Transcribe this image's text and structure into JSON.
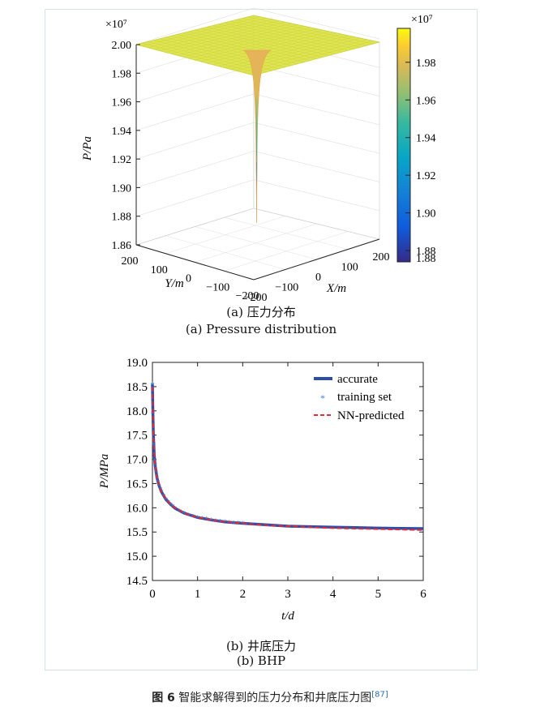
{
  "panel_a": {
    "caption_cn": "(a) 压力分布",
    "caption_en": "(a) Pressure distribution"
  },
  "panel_b": {
    "caption_cn": "(b) 井底压力",
    "caption_en": "(b) BHP"
  },
  "figure": {
    "label": "图 6",
    "title": "智能求解得到的压力分布和井底压力图",
    "ref": "[87]"
  },
  "colors": {
    "accurate": "#2b4fa8",
    "training": "#3f7fd0",
    "predicted": "#e0293a",
    "surface_top": "#d8e03c",
    "frame": "#d4e4ec"
  },
  "chart_data": [
    {
      "type": "surface",
      "zlabel": "P/Pa",
      "xlabel": "X/m",
      "ylabel": "Y/m",
      "z_exponent": "×10⁷",
      "colorbar_exponent": "×10⁷",
      "z_ticks": [
        "1.86",
        "1.88",
        "1.90",
        "1.92",
        "1.94",
        "1.96",
        "1.98",
        "2.00"
      ],
      "zlim": [
        1.86,
        2.0
      ],
      "x_ticks": [
        "−200",
        "−100",
        "0",
        "100",
        "200"
      ],
      "y_ticks": [
        "200",
        "100",
        "0",
        "−100",
        "−200"
      ],
      "xlim": [
        -200,
        200
      ],
      "ylim": [
        -200,
        200
      ],
      "colorbar_ticks": [
        "1.88",
        "1.90",
        "1.92",
        "1.94",
        "1.96",
        "1.98"
      ],
      "colorbar_range": [
        1.874,
        1.998
      ],
      "colormap": "parula",
      "surface_max": 2.0,
      "well_min": 1.875,
      "grid": true
    },
    {
      "type": "line",
      "xlabel": "t/d",
      "ylabel": "P/MPa",
      "xlim": [
        0,
        6
      ],
      "ylim": [
        14.5,
        19.0
      ],
      "x_ticks": [
        "0",
        "1",
        "2",
        "3",
        "4",
        "5",
        "6"
      ],
      "y_ticks": [
        "14.5",
        "15.0",
        "15.5",
        "16.0",
        "16.5",
        "17.0",
        "17.5",
        "18.0",
        "18.5",
        "19.0"
      ],
      "legend_position": "top-right",
      "grid": false,
      "series": [
        {
          "name": "accurate",
          "style": "solid",
          "x": [
            0,
            0.01,
            0.02,
            0.04,
            0.06,
            0.1,
            0.15,
            0.2,
            0.3,
            0.4,
            0.5,
            0.7,
            1.0,
            1.3,
            1.6,
            2.0,
            2.5,
            3.0,
            3.5,
            4.0,
            4.5,
            5.0,
            5.5,
            6.0
          ],
          "y": [
            18.55,
            17.95,
            17.55,
            17.1,
            16.88,
            16.62,
            16.45,
            16.33,
            16.17,
            16.07,
            15.99,
            15.89,
            15.8,
            15.75,
            15.71,
            15.68,
            15.65,
            15.62,
            15.61,
            15.6,
            15.59,
            15.58,
            15.575,
            15.57
          ]
        },
        {
          "name": "training set",
          "style": "markers",
          "x": [
            0,
            0.01,
            0.02,
            0.03,
            0.04,
            0.05,
            0.06,
            0.08,
            0.1,
            0.12,
            0.15,
            0.18,
            0.2,
            0.25,
            0.3,
            0.35,
            0.4,
            0.45,
            0.5,
            0.6,
            0.7,
            0.8,
            0.9,
            1.0,
            1.1,
            1.2,
            1.3,
            1.4,
            1.5,
            1.6,
            1.7,
            1.8,
            1.9,
            2.0
          ],
          "y": [
            18.55,
            17.95,
            17.55,
            17.3,
            17.1,
            16.98,
            16.88,
            16.73,
            16.62,
            16.53,
            16.45,
            16.38,
            16.33,
            16.25,
            16.17,
            16.12,
            16.07,
            16.03,
            15.99,
            15.93,
            15.89,
            15.85,
            15.82,
            15.8,
            15.78,
            15.77,
            15.75,
            15.73,
            15.72,
            15.71,
            15.7,
            15.69,
            15.685,
            15.68
          ]
        },
        {
          "name": "NN-predicted",
          "style": "dashed",
          "x": [
            0,
            0.02,
            0.05,
            0.1,
            0.2,
            0.4,
            0.7,
            1.0,
            1.5,
            2.0,
            2.5,
            3.0,
            3.5,
            4.0,
            4.5,
            5.0,
            5.5,
            6.0
          ],
          "y": [
            18.5,
            17.5,
            16.97,
            16.61,
            16.32,
            16.06,
            15.89,
            15.8,
            15.72,
            15.68,
            15.64,
            15.62,
            15.6,
            15.58,
            15.57,
            15.56,
            15.55,
            15.54
          ]
        }
      ]
    }
  ]
}
